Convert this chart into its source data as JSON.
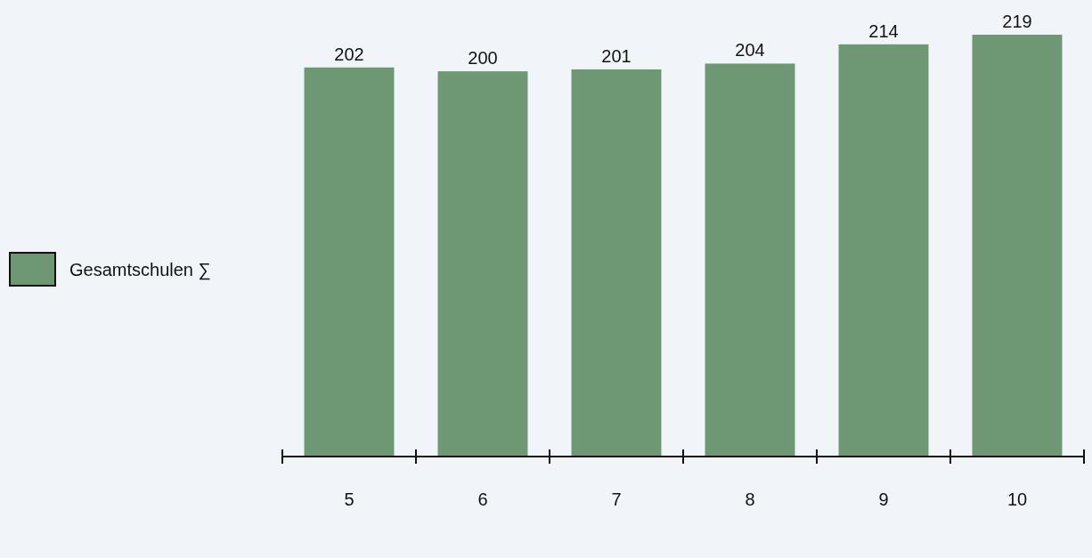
{
  "chart_data": {
    "type": "bar",
    "categories": [
      "5",
      "6",
      "7",
      "8",
      "9",
      "10"
    ],
    "series": [
      {
        "name": "Gesamtschulen ∑",
        "color": "#6e9873",
        "values": [
          202,
          200,
          201,
          204,
          214,
          219
        ]
      }
    ],
    "data_labels": true,
    "legend": "left"
  }
}
